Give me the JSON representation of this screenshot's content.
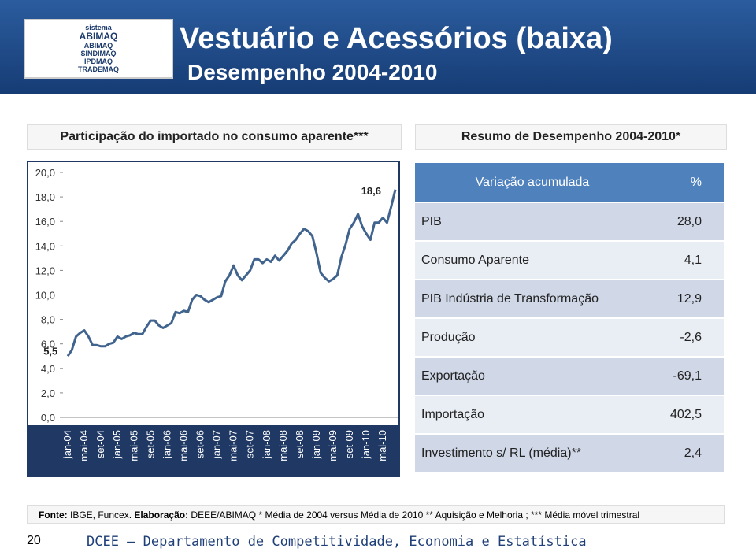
{
  "header": {
    "logo": [
      "sistema",
      "ABIMAQ",
      "ABIMAQ",
      "SINDIMAQ",
      "IPDMAQ",
      "TRADEMAQ"
    ],
    "title": "Vestuário e Acessórios (baixa)",
    "subtitle": "Desempenho 2004-2010"
  },
  "left_heading": "Participação do importado no consumo aparente***",
  "right_heading": "Resumo de Desempenho 2004-2010*",
  "chart_data": {
    "type": "line",
    "categories": [
      "jan-04",
      null,
      null,
      null,
      "mai-04",
      null,
      null,
      null,
      "set-04",
      null,
      null,
      null,
      "jan-05",
      null,
      null,
      null,
      "mai-05",
      null,
      null,
      null,
      "set-05",
      null,
      null,
      null,
      "jan-06",
      null,
      null,
      null,
      "mai-06",
      null,
      null,
      null,
      "set-06",
      null,
      null,
      null,
      "jan-07",
      null,
      null,
      null,
      "mai-07",
      null,
      null,
      null,
      "set-07",
      null,
      null,
      null,
      "jan-08",
      null,
      null,
      null,
      "mai-08",
      null,
      null,
      null,
      "set-08",
      null,
      null,
      null,
      "jan-09",
      null,
      null,
      null,
      "mai-09",
      null,
      null,
      null,
      "set-09",
      null,
      null,
      null,
      "jan-10",
      null,
      null,
      null,
      "mai-10",
      null,
      null,
      null
    ],
    "series": [
      {
        "color": "#41648f",
        "values": [
          5.0,
          5.5,
          6.6,
          6.9,
          7.1,
          6.6,
          5.9,
          5.9,
          5.8,
          5.8,
          6.0,
          6.1,
          6.6,
          6.4,
          6.6,
          6.7,
          6.9,
          6.8,
          6.8,
          7.4,
          7.9,
          7.9,
          7.5,
          7.3,
          7.5,
          7.7,
          8.6,
          8.5,
          8.7,
          8.6,
          9.6,
          10.0,
          9.9,
          9.6,
          9.4,
          9.6,
          9.8,
          9.9,
          11.1,
          11.6,
          12.4,
          11.6,
          11.2,
          11.6,
          12.0,
          12.9,
          12.9,
          12.6,
          12.9,
          12.7,
          13.2,
          12.8,
          13.2,
          13.6,
          14.2,
          14.5,
          15.0,
          15.4,
          15.2,
          14.8,
          13.4,
          11.8,
          11.4,
          11.1,
          11.3,
          11.6,
          13.1,
          14.1,
          15.4,
          15.9,
          16.6,
          15.6,
          15.0,
          14.5,
          15.9,
          15.9,
          16.3,
          15.9,
          17.2,
          18.6
        ],
        "value_labels": [
          null,
          "5,5",
          null,
          null,
          null,
          null,
          null,
          null,
          null,
          null,
          null,
          null,
          null,
          null,
          null,
          null,
          null,
          null,
          null,
          null,
          null,
          null,
          null,
          null,
          null,
          null,
          null,
          null,
          null,
          null,
          null,
          null,
          null,
          null,
          null,
          null,
          null,
          null,
          null,
          null,
          null,
          null,
          null,
          null,
          null,
          null,
          null,
          null,
          null,
          null,
          null,
          null,
          null,
          null,
          null,
          null,
          null,
          null,
          null,
          null,
          null,
          null,
          null,
          null,
          null,
          null,
          null,
          null,
          null,
          null,
          null,
          null,
          null,
          null,
          null,
          null,
          null,
          null,
          null,
          "18,6"
        ]
      }
    ],
    "ylim": [
      0,
      20
    ],
    "yticks": [
      {
        "value": 0,
        "label": "0,0"
      },
      {
        "value": 2,
        "label": "2,0"
      },
      {
        "value": 4,
        "label": "4,0"
      },
      {
        "value": 6,
        "label": "6,0"
      },
      {
        "value": 8,
        "label": "8,0"
      },
      {
        "value": 10,
        "label": "10,0"
      },
      {
        "value": 12,
        "label": "12,0"
      },
      {
        "value": 14,
        "label": "14,0"
      },
      {
        "value": 16,
        "label": "16,0"
      },
      {
        "value": 18,
        "label": "18,0"
      },
      {
        "value": 20,
        "label": "20,0"
      }
    ],
    "grid": false
  },
  "table": {
    "header": [
      "Variação acumulada",
      "%"
    ],
    "rows": [
      [
        "PIB",
        "28,0"
      ],
      [
        "Consumo Aparente",
        "4,1"
      ],
      [
        "PIB  Indústria de Transformação",
        "12,9"
      ],
      [
        "Produção",
        "-2,6"
      ],
      [
        "Exportação",
        "-69,1"
      ],
      [
        "Importação",
        "402,5"
      ],
      [
        "Investimento s/ RL (média)**",
        "2,4"
      ]
    ]
  },
  "footer": {
    "source_label": "Fonte:",
    "source": "IBGE, Funcex.",
    "credit_label": "Elaboração:",
    "credit": "DEEE/ABIMAQ  * Média de 2004 versus Média de 2010 **  Aquisição e Melhoria ; *** Média móvel trimestral",
    "page": "20",
    "department": "DCEE – Departamento de Competitividade, Economia e Estatística"
  }
}
